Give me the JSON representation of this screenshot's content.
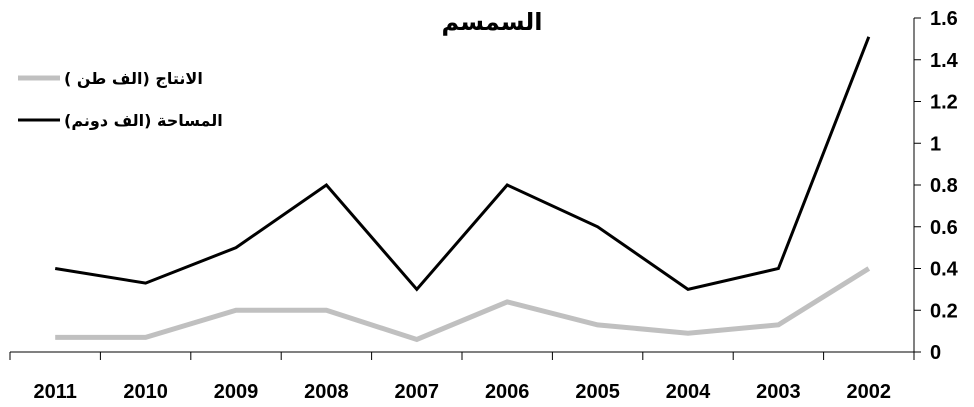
{
  "chart_data": {
    "type": "line",
    "title": "السمسم",
    "categories": [
      "2011",
      "2010",
      "2009",
      "2008",
      "2007",
      "2006",
      "2005",
      "2004",
      "2003",
      "2002"
    ],
    "series": [
      {
        "name": "الانتاج (الف طن )",
        "color": "#c0c0c0",
        "values": [
          0.07,
          0.07,
          0.2,
          0.2,
          0.06,
          0.24,
          0.13,
          0.09,
          0.13,
          0.4
        ]
      },
      {
        "name": "المساحة (الف دونم)",
        "color": "#000000",
        "values": [
          0.4,
          0.33,
          0.5,
          0.8,
          0.3,
          0.8,
          0.6,
          0.3,
          0.4,
          1.51
        ]
      }
    ],
    "y_ticks": [
      "0",
      "0.2",
      "0.4",
      "0.6",
      "0.8",
      "1",
      "1.2",
      "1.4",
      "1.6"
    ],
    "ylim": [
      0,
      1.6
    ],
    "y_axis_side": "right",
    "legend_position": "top-left",
    "grid": false
  }
}
